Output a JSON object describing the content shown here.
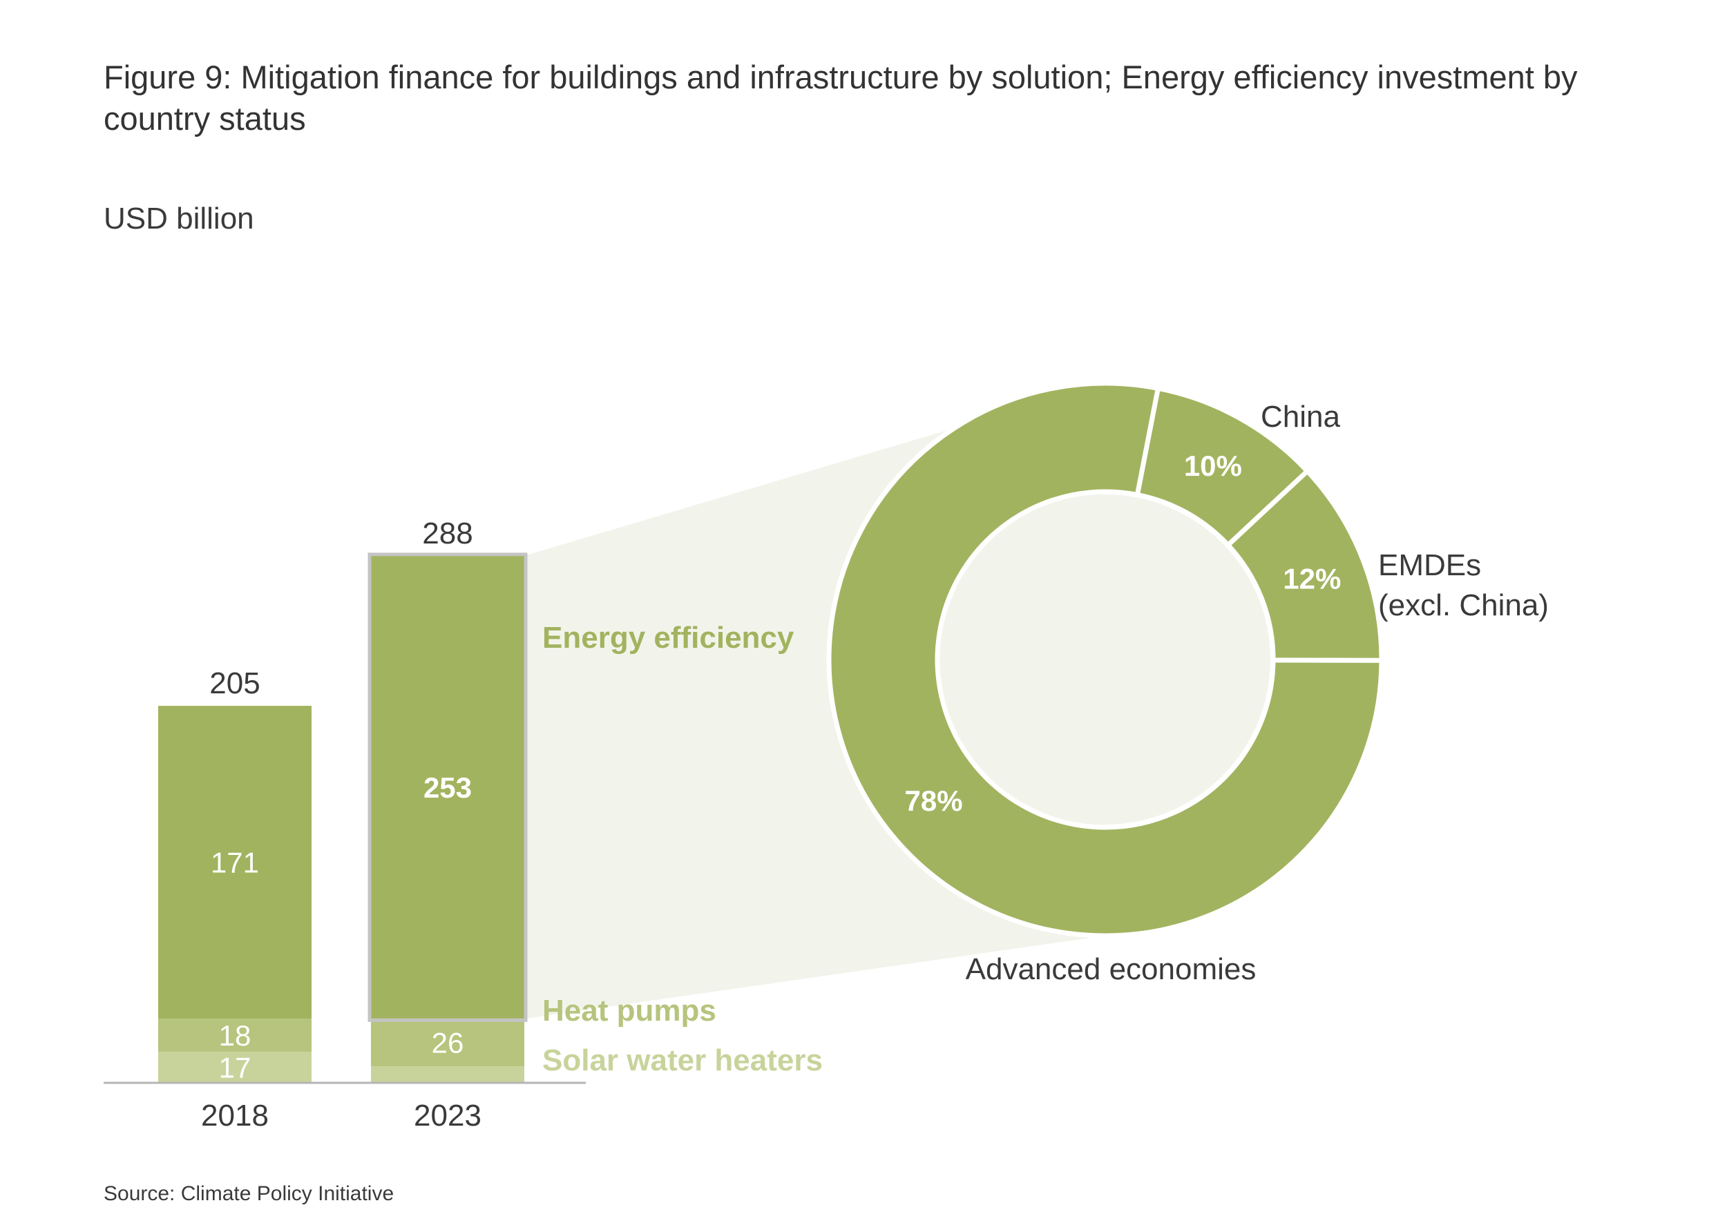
{
  "title": "Figure 9: Mitigation finance for buildings and infrastructure by solution; Energy efficiency investment by country status",
  "unit_label": "USD billion",
  "source": "Source: Climate Policy Initiative",
  "colors": {
    "energy_efficiency": "#a2b35f",
    "heat_pumps": "#b6c47d",
    "solar_water_heaters": "#c8d39b",
    "zoom_fill": "#f2f4eb",
    "highlight_border": "#c4c4c4",
    "axis": "#b5b5b5"
  },
  "chart_data": [
    {
      "type": "bar",
      "stacked": true,
      "categories": [
        "2018",
        "2023"
      ],
      "totals": [
        205,
        288
      ],
      "series": [
        {
          "name": "Solar water heaters",
          "values": [
            17,
            9
          ],
          "labels": [
            "17",
            ""
          ]
        },
        {
          "name": "Heat pumps",
          "values": [
            18,
            26
          ],
          "labels": [
            "18",
            "26"
          ]
        },
        {
          "name": "Energy efficiency",
          "values": [
            171,
            253
          ],
          "labels": [
            "171",
            "253"
          ]
        }
      ],
      "ylabel": "USD billion",
      "ylim": [
        0,
        300
      ],
      "highlight": {
        "category": "2023",
        "series": "Energy efficiency"
      }
    },
    {
      "type": "pie",
      "donut": true,
      "slices": [
        {
          "name": "China",
          "value": 10,
          "label": "10%"
        },
        {
          "name": "EMDEs (excl. China)",
          "name_lines": [
            "EMDEs",
            "(excl. China)"
          ],
          "value": 12,
          "label": "12%"
        },
        {
          "name": "Advanced economies",
          "value": 78,
          "label": "78%"
        }
      ]
    }
  ]
}
